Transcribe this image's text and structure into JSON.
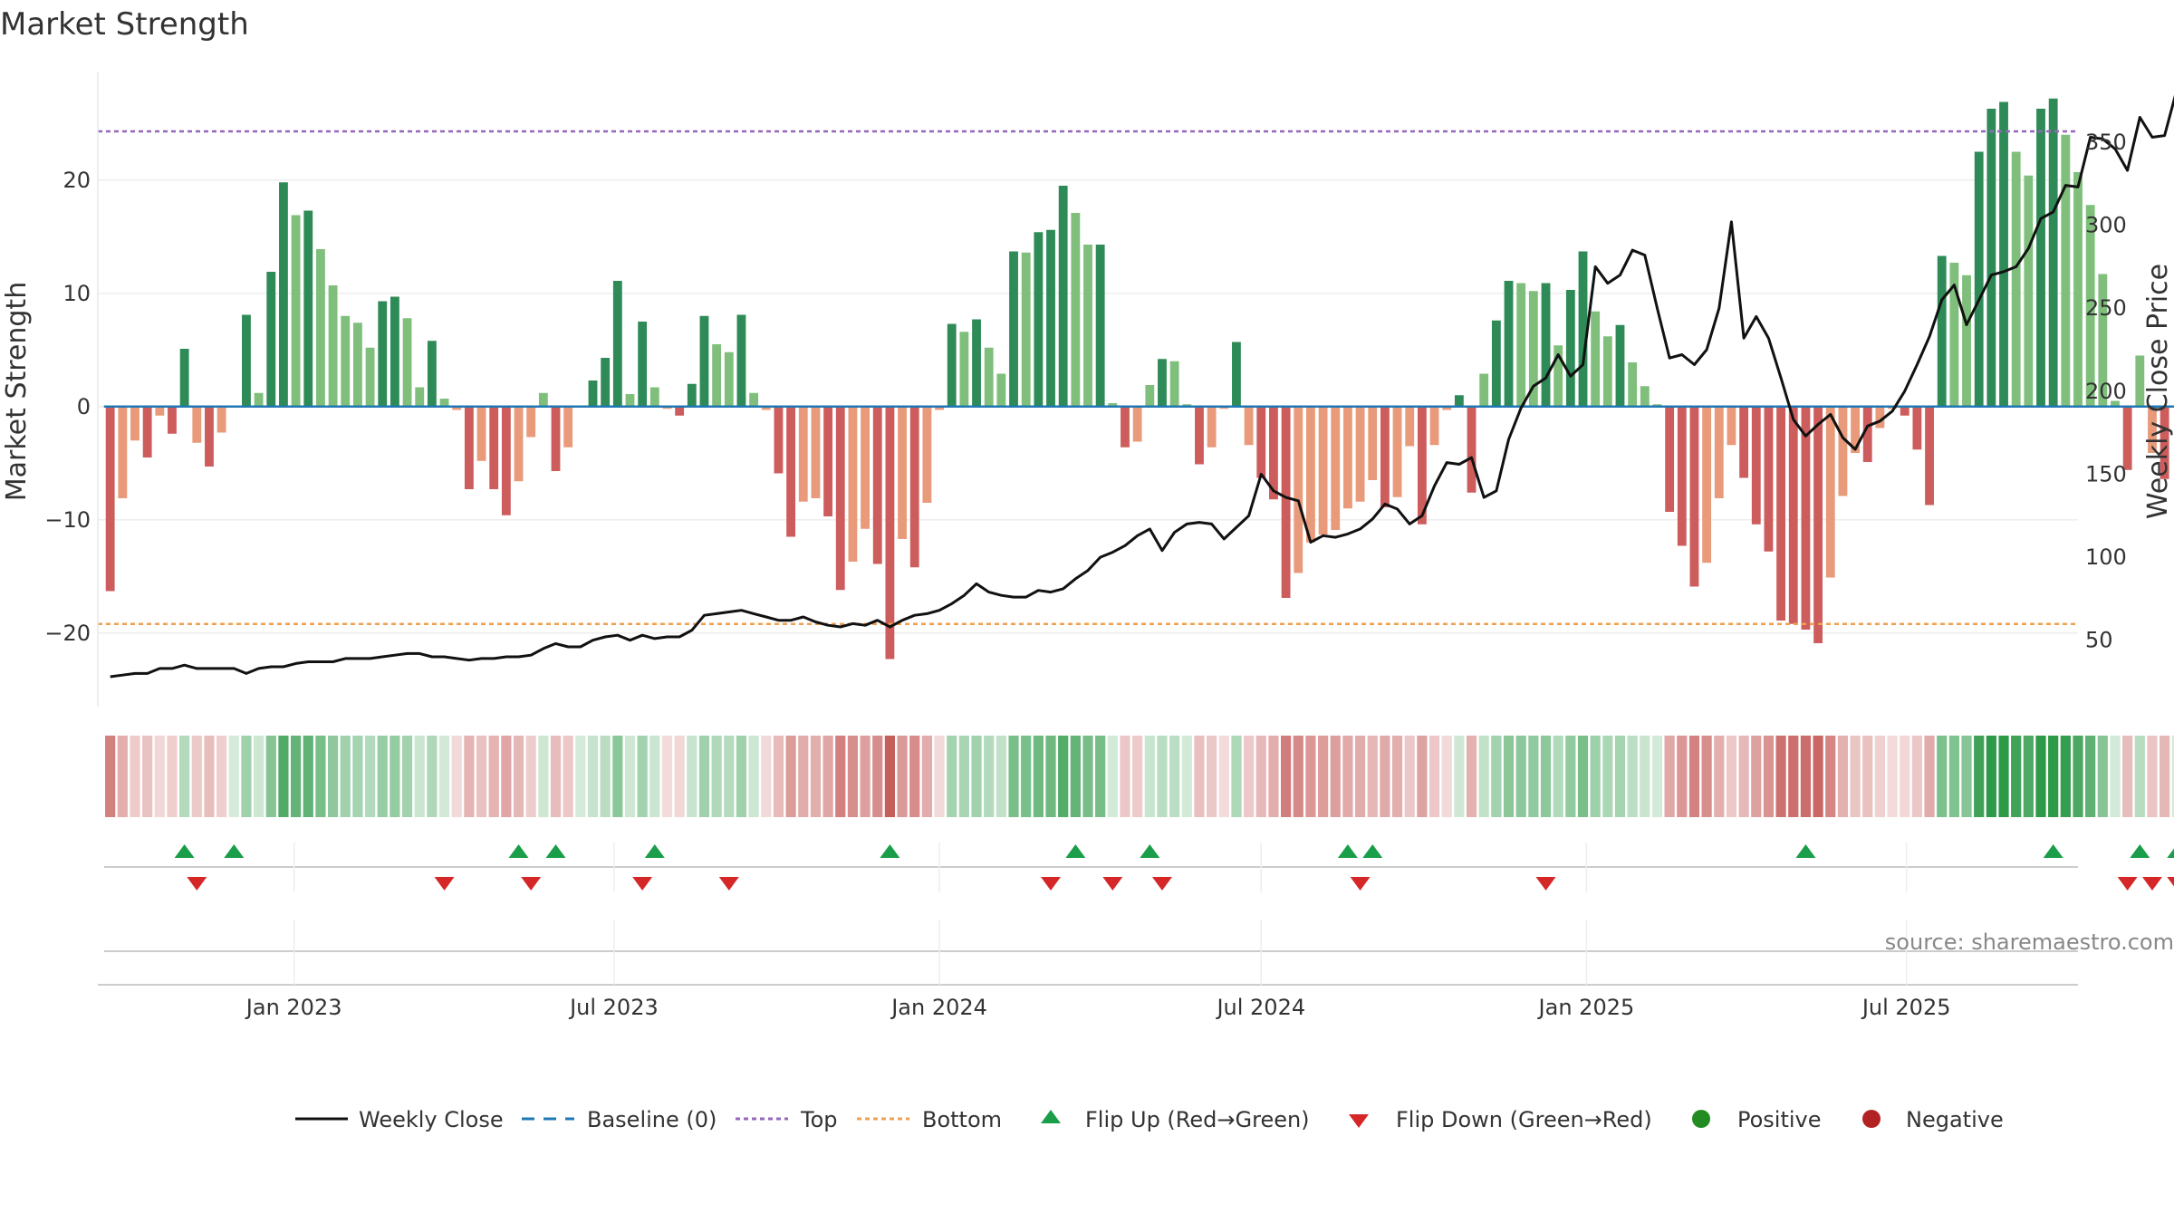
{
  "chart_data": {
    "type": "bar",
    "title": "Market Strength",
    "ylabel": "Market Strength",
    "y2label": "Weekly Close Price",
    "ylim": [
      -26.5,
      29.5
    ],
    "y2lim": [
      10,
      392
    ],
    "yticks": [
      20,
      10,
      0,
      -10,
      -20
    ],
    "ytick_labels": [
      "20",
      "10",
      "0",
      "−10",
      "−20"
    ],
    "y2ticks": [
      350,
      300,
      250,
      200,
      150,
      100,
      50
    ],
    "top_level": 24.3,
    "bottom_level": -19.2,
    "x_range": [
      "2022-09-12",
      "2025-10-06"
    ],
    "x_ticks": [
      {
        "date": "2023-01-01",
        "label": "Jan 2023"
      },
      {
        "date": "2023-07-01",
        "label": "Jul 2023"
      },
      {
        "date": "2024-01-01",
        "label": "Jan 2024"
      },
      {
        "date": "2024-07-01",
        "label": "Jul 2024"
      },
      {
        "date": "2025-01-01",
        "label": "Jan 2025"
      },
      {
        "date": "2025-07-01",
        "label": "Jul 2025"
      }
    ],
    "start_week": "2022-09-19",
    "strength": [
      -16.3,
      -8.1,
      -3.0,
      -4.5,
      -0.8,
      -2.4,
      5.1,
      -3.2,
      -5.3,
      -2.3,
      0.1,
      8.1,
      1.2,
      11.9,
      19.8,
      16.9,
      17.3,
      13.9,
      10.7,
      8.0,
      7.4,
      5.2,
      9.3,
      9.7,
      7.8,
      1.7,
      5.8,
      0.7,
      -0.3,
      -7.3,
      -4.8,
      -7.3,
      -9.6,
      -6.6,
      -2.7,
      1.2,
      -5.7,
      -3.6,
      0.1,
      2.3,
      4.3,
      11.1,
      1.1,
      7.5,
      1.7,
      -0.2,
      -0.8,
      2.0,
      8.0,
      5.5,
      4.8,
      8.1,
      1.2,
      -0.3,
      -5.9,
      -11.5,
      -8.4,
      -8.1,
      -9.7,
      -16.2,
      -13.7,
      -10.8,
      -13.9,
      -22.3,
      -11.7,
      -14.2,
      -8.5,
      -0.3,
      7.3,
      6.6,
      7.7,
      5.2,
      2.9,
      13.7,
      13.6,
      15.4,
      15.6,
      19.5,
      17.1,
      14.3,
      14.3,
      0.3,
      -3.6,
      -3.1,
      1.9,
      4.2,
      4.0,
      0.2,
      -5.1,
      -3.6,
      -0.2,
      5.7,
      -3.4,
      -6.3,
      -8.2,
      -16.9,
      -14.7,
      -12.0,
      -11.3,
      -10.9,
      -9.0,
      -8.4,
      -6.5,
      -8.9,
      -8.0,
      -3.5,
      -10.4,
      -3.4,
      -0.3,
      1.0,
      -7.6,
      2.9,
      7.6,
      11.1,
      10.9,
      10.2,
      10.9,
      5.4,
      10.3,
      13.7,
      8.4,
      6.2,
      7.2,
      3.9,
      1.8,
      0.2,
      -9.3,
      -12.3,
      -15.9,
      -13.8,
      -8.1,
      -3.4,
      -6.3,
      -10.4,
      -12.8,
      -18.9,
      -19.2,
      -19.7,
      -20.9,
      -15.1,
      -7.9,
      -4.1,
      -4.9,
      -1.9,
      -0.2,
      -0.8,
      -3.8,
      -8.7,
      13.3,
      12.7,
      11.6,
      22.5,
      26.3,
      26.9,
      22.5,
      20.4,
      26.3,
      27.2,
      24.0,
      20.7,
      17.8,
      11.7,
      0.5,
      -5.6,
      4.5,
      -4.1,
      -6.4,
      0.1
    ],
    "weekly_close": [
      28,
      29,
      30,
      30,
      33,
      33,
      35,
      33,
      33,
      33,
      33,
      30,
      33,
      34,
      34,
      36,
      37,
      37,
      37,
      39,
      39,
      39,
      40,
      41,
      42,
      42,
      40,
      40,
      39,
      38,
      39,
      39,
      40,
      40,
      41,
      45,
      48,
      46,
      46,
      50,
      52,
      53,
      50,
      53,
      51,
      52,
      52,
      56,
      65,
      66,
      67,
      68,
      66,
      64,
      62,
      62,
      64,
      61,
      59,
      58,
      60,
      59,
      62,
      58,
      62,
      65,
      66,
      68,
      72,
      77,
      84,
      79,
      77,
      76,
      76,
      80,
      79,
      81,
      87,
      92,
      100,
      103,
      107,
      113,
      117,
      104,
      115,
      120,
      121,
      120,
      111,
      118,
      125,
      150,
      140,
      136,
      134,
      109,
      113,
      112,
      114,
      117,
      123,
      132,
      129,
      120,
      125,
      143,
      157,
      156,
      160,
      136,
      140,
      171,
      190,
      203,
      208,
      222,
      209,
      216,
      275,
      265,
      270,
      285,
      282,
      250,
      220,
      222,
      216,
      225,
      250,
      302,
      232,
      245,
      232,
      208,
      183,
      173,
      180,
      186,
      172,
      165,
      179,
      182,
      188,
      200,
      216,
      233,
      255,
      264,
      240,
      255,
      270,
      272,
      275,
      286,
      304,
      308,
      324,
      323,
      353,
      352,
      346,
      333,
      365,
      353,
      354,
      382,
      383
    ],
    "flip_up_weeks": [
      6,
      10,
      33,
      36,
      44,
      63,
      78,
      84,
      100,
      102,
      137,
      157,
      164,
      167
    ],
    "flip_down_weeks": [
      7,
      27,
      34,
      43,
      50,
      76,
      81,
      85,
      101,
      116,
      163,
      165,
      167
    ],
    "series": [
      {
        "name": "Weekly Close",
        "color": "#111111"
      },
      {
        "name": "Baseline (0)",
        "color": "#1f77b4"
      },
      {
        "name": "Top",
        "color": "#9467bd"
      },
      {
        "name": "Bottom",
        "color": "#ff7f0e"
      },
      {
        "name": "Flip Up (Red→Green)",
        "color": "#1a9e4a"
      },
      {
        "name": "Flip Down (Green→Red)",
        "color": "#d62728"
      },
      {
        "name": "Positive",
        "color": "#228b22"
      },
      {
        "name": "Negative",
        "color": "#b22222"
      }
    ],
    "source": "source: sharemaestro.com"
  }
}
